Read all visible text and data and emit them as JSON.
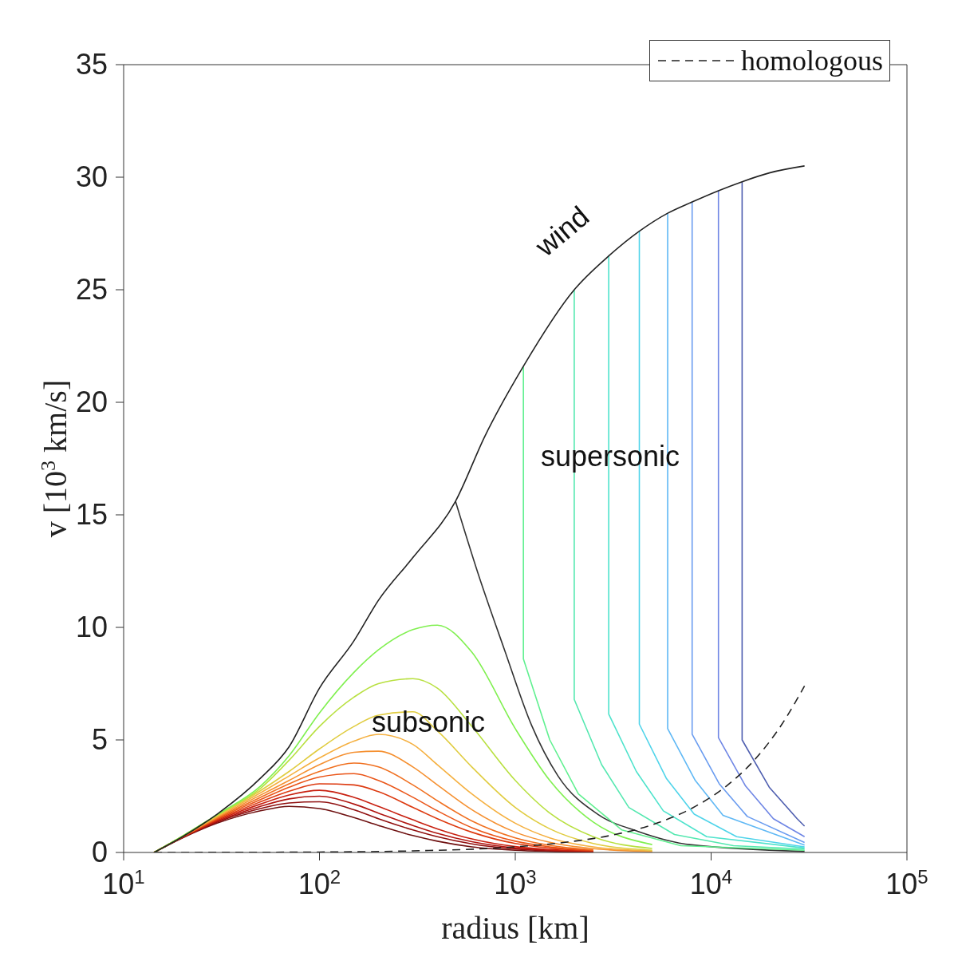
{
  "chart_data": {
    "type": "line",
    "xlabel": "radius [km]",
    "ylabel": "v [10$^{3}$ km/s]",
    "log": "x",
    "grid": false,
    "legend": "top right",
    "marker": "none",
    "xlim": [
      10,
      100000
    ],
    "xticks": [
      {
        "value": 10,
        "label": "10$^{1}$"
      },
      {
        "value": 100,
        "label": "10$^{2}$"
      },
      {
        "value": 1000,
        "label": "10$^{3}$"
      },
      {
        "value": 10000,
        "label": "10$^{4}$"
      },
      {
        "value": 100000,
        "label": "10$^{5}$"
      }
    ],
    "ylim": [
      0,
      35
    ],
    "yticks": [
      0,
      5,
      10,
      15,
      20,
      25,
      30,
      35
    ],
    "annotations": [
      "wind",
      "supersonic",
      "subsonic"
    ],
    "series": [
      {
        "color": "#6e1010",
        "x": [
          14.3,
          20,
          30,
          50,
          70,
          100,
          150,
          200,
          300,
          400,
          600,
          1000,
          1500,
          2500
        ],
        "values": [
          0,
          0.65,
          1.3,
          1.85,
          2.05,
          1.95,
          1.55,
          1.2,
          0.75,
          0.5,
          0.25,
          0.1,
          0.05,
          0.02
        ]
      },
      {
        "color": "#901010",
        "x": [
          14.3,
          20,
          30,
          50,
          70,
          100,
          150,
          200,
          300,
          400,
          600,
          1000,
          1500,
          2500
        ],
        "values": [
          0,
          0.66,
          1.35,
          1.95,
          2.2,
          2.25,
          1.9,
          1.5,
          1.0,
          0.7,
          0.38,
          0.15,
          0.07,
          0.03
        ]
      },
      {
        "color": "#b01510",
        "x": [
          14.3,
          20,
          30,
          50,
          70,
          100,
          150,
          200,
          300,
          400,
          600,
          1000,
          1500,
          2500
        ],
        "values": [
          0,
          0.67,
          1.38,
          2.05,
          2.38,
          2.5,
          2.15,
          1.75,
          1.2,
          0.85,
          0.48,
          0.2,
          0.1,
          0.04
        ]
      },
      {
        "color": "#c82010",
        "x": [
          14.3,
          20,
          30,
          50,
          70,
          100,
          150,
          200,
          300,
          400,
          600,
          1000,
          1500,
          2500
        ],
        "values": [
          0,
          0.68,
          1.42,
          2.15,
          2.55,
          2.76,
          2.45,
          2.05,
          1.45,
          1.05,
          0.6,
          0.26,
          0.13,
          0.05
        ]
      },
      {
        "color": "#dd3a10",
        "x": [
          14.3,
          20,
          30,
          50,
          70,
          100,
          150,
          200,
          300,
          400,
          600,
          1000,
          1500,
          2500
        ],
        "values": [
          0,
          0.69,
          1.46,
          2.25,
          2.72,
          3.05,
          3.0,
          2.7,
          2.0,
          1.5,
          0.9,
          0.4,
          0.2,
          0.07
        ]
      },
      {
        "color": "#ea5518",
        "x": [
          14.3,
          20,
          30,
          50,
          70,
          100,
          150,
          200,
          300,
          400,
          600,
          1000,
          1500,
          2500
        ],
        "values": [
          0,
          0.7,
          1.5,
          2.35,
          2.9,
          3.35,
          3.5,
          3.2,
          2.45,
          1.85,
          1.1,
          0.5,
          0.25,
          0.1
        ]
      },
      {
        "color": "#f07020",
        "x": [
          14.3,
          20,
          30,
          50,
          70,
          100,
          150,
          200,
          300,
          400,
          600,
          1000,
          1500,
          2500
        ],
        "values": [
          0,
          0.7,
          1.53,
          2.45,
          3.05,
          3.6,
          3.97,
          3.8,
          3.0,
          2.3,
          1.4,
          0.65,
          0.32,
          0.12
        ]
      },
      {
        "color": "#f59030",
        "x": [
          14.3,
          20,
          30,
          50,
          70,
          100,
          150,
          200,
          300,
          400,
          600,
          1000,
          1500,
          2500,
          5000
        ],
        "values": [
          0,
          0.71,
          1.56,
          2.55,
          3.2,
          3.9,
          4.45,
          4.5,
          3.8,
          3.0,
          1.9,
          0.9,
          0.45,
          0.17,
          0.04
        ]
      },
      {
        "color": "#f5b040",
        "x": [
          14.3,
          20,
          30,
          50,
          70,
          100,
          150,
          200,
          300,
          400,
          600,
          1000,
          1500,
          2500,
          5000
        ],
        "values": [
          0,
          0.72,
          1.6,
          2.65,
          3.4,
          4.2,
          4.95,
          5.25,
          4.8,
          3.9,
          2.6,
          1.3,
          0.65,
          0.25,
          0.06
        ]
      },
      {
        "color": "#e0cc40",
        "x": [
          14.3,
          20,
          30,
          50,
          70,
          100,
          150,
          200,
          300,
          400,
          600,
          1000,
          1500,
          2500,
          5000
        ],
        "values": [
          0,
          0.72,
          1.63,
          2.75,
          3.6,
          4.6,
          5.6,
          6.1,
          6.25,
          5.4,
          3.8,
          2.0,
          1.05,
          0.4,
          0.1
        ]
      },
      {
        "color": "#b8e040",
        "x": [
          14.3,
          20,
          30,
          50,
          70,
          100,
          150,
          200,
          300,
          400,
          600,
          1000,
          1500,
          2500,
          5000
        ],
        "values": [
          0,
          0.73,
          1.66,
          2.85,
          4.1,
          5.6,
          6.9,
          7.5,
          7.72,
          7.3,
          5.6,
          3.2,
          1.75,
          0.7,
          0.18
        ]
      },
      {
        "color": "#80f050",
        "x": [
          14.3,
          20,
          30,
          50,
          70,
          100,
          150,
          200,
          300,
          400,
          600,
          1000,
          1500,
          2500,
          5000
        ],
        "values": [
          0,
          0.73,
          1.68,
          2.95,
          4.3,
          6.2,
          8.0,
          9.0,
          9.9,
          10.1,
          8.9,
          5.5,
          3.2,
          1.35,
          0.35
        ]
      },
      {
        "color": "#333333",
        "x": [
          495,
          645,
          881,
          1211,
          1652,
          2635,
          4216,
          7890,
          30000
        ],
        "values": [
          15.6,
          12.4,
          9.0,
          5.65,
          3.4,
          1.7,
          0.94,
          0.34,
          0.05
        ]
      },
      {
        "color": "#60f090",
        "x": [
          1100,
          1100,
          1500,
          2100,
          3500,
          7000,
          30000
        ],
        "values": [
          21.6,
          8.6,
          5.0,
          2.6,
          1.0,
          0.3,
          0.1
        ]
      },
      {
        "color": "#55e8b0",
        "x": [
          2000,
          2000,
          2760,
          3800,
          6500,
          13000,
          30000
        ],
        "values": [
          25.0,
          6.8,
          3.9,
          2.0,
          0.8,
          0.3,
          0.15
        ]
      },
      {
        "color": "#4ee3cc",
        "x": [
          3000,
          3000,
          4150,
          5700,
          9500,
          30000
        ],
        "values": [
          26.5,
          6.15,
          3.6,
          1.85,
          0.7,
          0.2
        ]
      },
      {
        "color": "#4fd4ea",
        "x": [
          4300,
          4300,
          5900,
          8200,
          13500,
          30000
        ],
        "values": [
          27.6,
          5.7,
          3.3,
          1.7,
          0.7,
          0.25
        ]
      },
      {
        "color": "#5fb8f5",
        "x": [
          6000,
          6000,
          8300,
          11500,
          30000
        ],
        "values": [
          28.4,
          5.5,
          3.2,
          1.65,
          0.33
        ]
      },
      {
        "color": "#6a9cf0",
        "x": [
          8000,
          8000,
          11000,
          15300,
          30000
        ],
        "values": [
          28.9,
          5.25,
          3.05,
          1.6,
          0.44
        ]
      },
      {
        "color": "#6f86e5",
        "x": [
          10900,
          10900,
          15000,
          20800,
          30000
        ],
        "values": [
          29.4,
          5.1,
          2.95,
          1.5,
          0.7
        ]
      },
      {
        "color": "#4f5fb0",
        "x": [
          14400,
          14400,
          19800,
          27500,
          30000
        ],
        "values": [
          29.8,
          5.0,
          2.9,
          1.5,
          1.17
        ]
      },
      {
        "color": "#222222",
        "x": [
          14.3,
          20,
          30,
          50,
          70,
          100,
          150,
          200,
          300,
          495,
          700,
          1100,
          2000,
          3000,
          4300,
          6000,
          8000,
          10900,
          14400,
          20000,
          30000
        ],
        "values": [
          0,
          0.7,
          1.7,
          3.3,
          4.7,
          7.3,
          9.4,
          11.2,
          13.1,
          15.6,
          18.5,
          21.6,
          25.0,
          26.5,
          27.6,
          28.4,
          28.9,
          29.4,
          29.8,
          30.2,
          30.5
        ]
      },
      {
        "name": "homologous",
        "color": "#222222",
        "line_style": "dashed",
        "x": [
          14.3,
          100,
          300,
          1000,
          2000,
          3000,
          5000,
          8000,
          12000,
          17000,
          23000,
          30000
        ],
        "values": [
          0,
          0.02,
          0.07,
          0.25,
          0.5,
          0.74,
          1.23,
          1.97,
          2.96,
          4.2,
          5.7,
          7.4
        ]
      }
    ]
  }
}
